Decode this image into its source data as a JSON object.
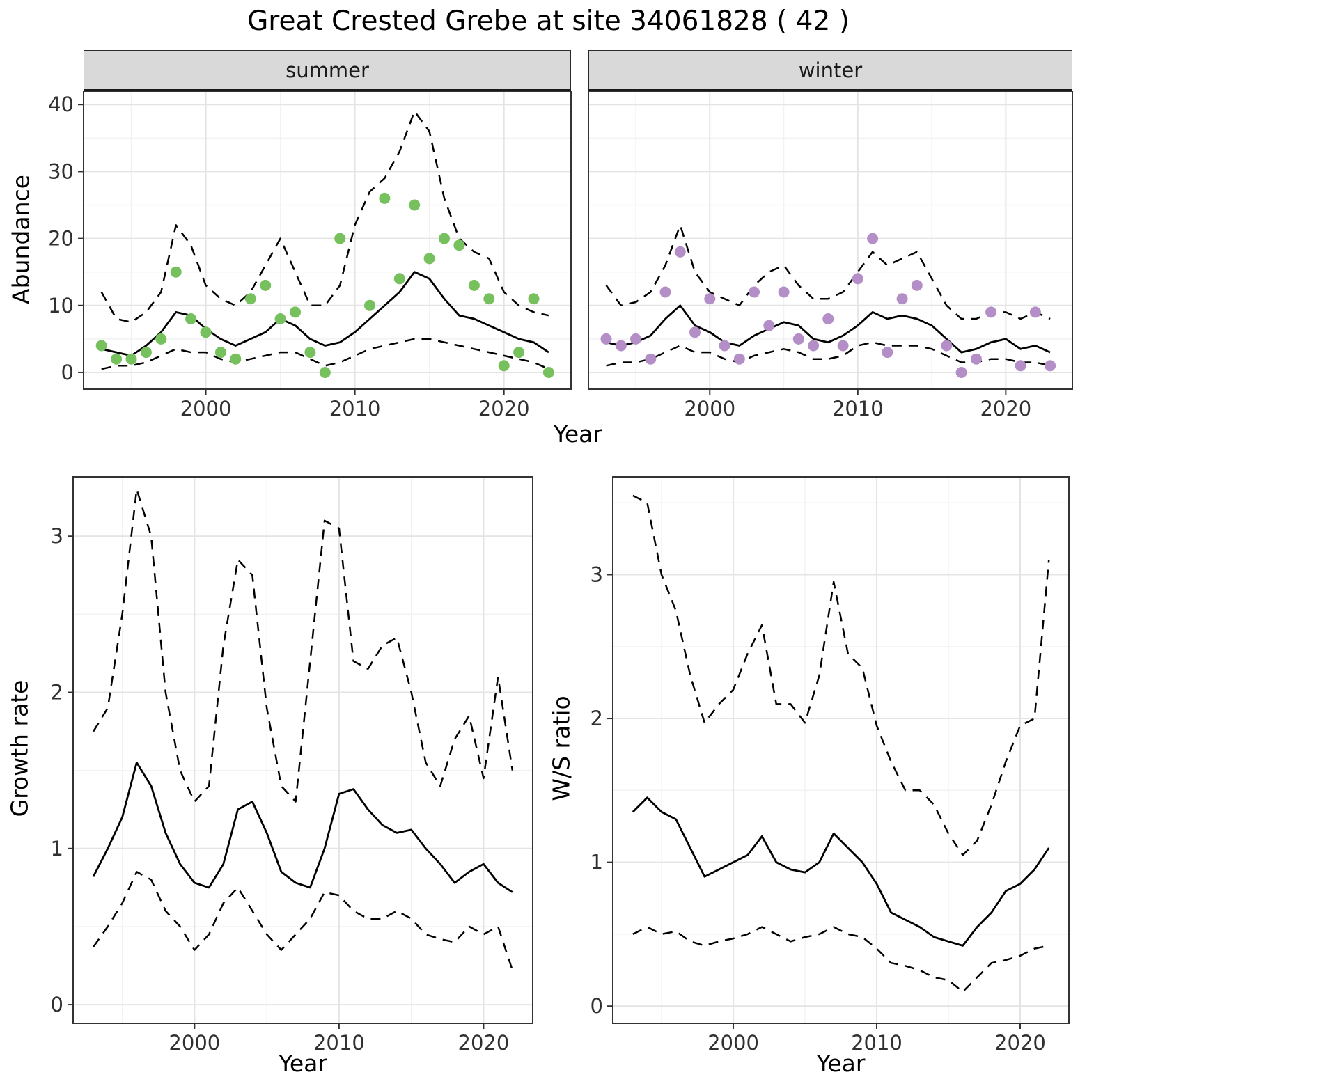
{
  "title": "Great Crested Grebe at site 34061828 ( 42 )",
  "colors": {
    "summer_point": "#76C05D",
    "winter_point": "#B48EC7",
    "fit_line": "#000000",
    "ci_line": "#000000",
    "strip_bg": "#d9d9d9",
    "grid_major": "#e4e4e4",
    "grid_minor": "#f2f2f2",
    "panel_border": "#333333",
    "tick_text": "#303030"
  },
  "chart_data": [
    {
      "type": "line",
      "facet_label": "summer",
      "xlabel": "Year",
      "ylabel": "Abundance",
      "xlim": [
        1991.8,
        2024.5
      ],
      "ylim": [
        -2.5,
        42
      ],
      "xticks": [
        2000,
        2010,
        2020
      ],
      "yticks": [
        0,
        10,
        20,
        30,
        40
      ],
      "xminor": [
        1995,
        2005,
        2015
      ],
      "yminor": [
        5,
        15,
        25,
        35
      ],
      "x": [
        1993,
        1994,
        1995,
        1996,
        1997,
        1998,
        1999,
        2000,
        2001,
        2002,
        2003,
        2004,
        2005,
        2006,
        2007,
        2008,
        2009,
        2010,
        2011,
        2012,
        2013,
        2014,
        2015,
        2016,
        2017,
        2018,
        2019,
        2020,
        2021,
        2022,
        2023
      ],
      "series": [
        {
          "name": "ci-upper",
          "type": "line",
          "dashed": true,
          "color": "#000000",
          "values": [
            12,
            8,
            7.5,
            9,
            12,
            22,
            19,
            13,
            11,
            10,
            12,
            16,
            20,
            15,
            10,
            10,
            13,
            22,
            27,
            29,
            33,
            39,
            36,
            26,
            20,
            18,
            17,
            12,
            10,
            9,
            8.5
          ]
        },
        {
          "name": "ci-lower",
          "type": "line",
          "dashed": true,
          "color": "#000000",
          "values": [
            0.5,
            1,
            1,
            1.5,
            2.5,
            3.5,
            3,
            3,
            2,
            1.5,
            2,
            2.5,
            3,
            3,
            2,
            1,
            1.5,
            2.5,
            3.5,
            4,
            4.5,
            5,
            5,
            4.5,
            4,
            3.5,
            3,
            2.5,
            2,
            1.5,
            0.5
          ]
        },
        {
          "name": "fitted",
          "type": "line",
          "dashed": false,
          "color": "#000000",
          "values": [
            3.5,
            3,
            2.5,
            4,
            6,
            9,
            8.5,
            6.5,
            5,
            4,
            5,
            6,
            8,
            7,
            5,
            4,
            4.5,
            6,
            8,
            10,
            12,
            15,
            14,
            11,
            8.5,
            8,
            7,
            6,
            5,
            4.5,
            3
          ]
        },
        {
          "name": "observed",
          "type": "points",
          "color": "#76C05D",
          "values": [
            4,
            2,
            2,
            3,
            5,
            15,
            8,
            6,
            3,
            2,
            11,
            13,
            8,
            9,
            3,
            0,
            20,
            null,
            10,
            26,
            14,
            25,
            17,
            20,
            19,
            13,
            11,
            1,
            3,
            11,
            0
          ]
        }
      ]
    },
    {
      "type": "line",
      "facet_label": "winter",
      "xlabel": "Year",
      "ylabel": "Abundance",
      "xlim": [
        1991.8,
        2024.5
      ],
      "ylim": [
        -2.5,
        42
      ],
      "xticks": [
        2000,
        2010,
        2020
      ],
      "yticks": [
        0,
        10,
        20,
        30,
        40
      ],
      "xminor": [
        1995,
        2005,
        2015
      ],
      "yminor": [
        5,
        15,
        25,
        35
      ],
      "x": [
        1993,
        1994,
        1995,
        1996,
        1997,
        1998,
        1999,
        2000,
        2001,
        2002,
        2003,
        2004,
        2005,
        2006,
        2007,
        2008,
        2009,
        2010,
        2011,
        2012,
        2013,
        2014,
        2015,
        2016,
        2017,
        2018,
        2019,
        2020,
        2021,
        2022,
        2023
      ],
      "series": [
        {
          "name": "ci-upper",
          "type": "line",
          "dashed": true,
          "color": "#000000",
          "values": [
            13,
            10,
            10.5,
            12,
            16,
            22,
            15,
            12,
            11,
            10,
            13,
            15,
            16,
            13,
            11,
            11,
            12,
            15,
            18,
            16,
            17,
            18,
            14,
            10,
            8,
            8,
            9,
            9,
            8,
            9,
            8
          ]
        },
        {
          "name": "ci-lower",
          "type": "line",
          "dashed": true,
          "color": "#000000",
          "values": [
            1,
            1.5,
            1.5,
            2,
            3,
            4,
            3,
            3,
            2,
            1.5,
            2.5,
            3,
            3.5,
            3,
            2,
            2,
            2.5,
            4,
            4.5,
            4,
            4,
            4,
            3.5,
            2.5,
            1.5,
            1.5,
            2,
            2,
            1.5,
            1.5,
            1
          ]
        },
        {
          "name": "fitted",
          "type": "line",
          "dashed": false,
          "color": "#000000",
          "values": [
            4.5,
            4,
            4.5,
            5.5,
            8,
            10,
            7,
            6,
            4.5,
            4,
            5.5,
            6.5,
            7.5,
            7,
            5,
            4.5,
            5.5,
            7,
            9,
            8,
            8.5,
            8,
            7,
            5,
            3,
            3.5,
            4.5,
            5,
            3.5,
            4,
            3
          ]
        },
        {
          "name": "observed",
          "type": "points",
          "color": "#B48EC7",
          "values": [
            5,
            4,
            5,
            2,
            12,
            18,
            6,
            11,
            4,
            2,
            12,
            7,
            12,
            5,
            4,
            8,
            4,
            14,
            20,
            3,
            11,
            13,
            null,
            4,
            0,
            2,
            9,
            null,
            1,
            9,
            1
          ]
        }
      ]
    },
    {
      "type": "line",
      "xlabel": "Year",
      "ylabel": "Growth rate",
      "xlim": [
        1991.6,
        2023.4
      ],
      "ylim": [
        -0.12,
        3.38
      ],
      "xticks": [
        2000,
        2010,
        2020
      ],
      "yticks": [
        0,
        1,
        2,
        3
      ],
      "xminor": [
        1995,
        2005,
        2015
      ],
      "yminor": [
        0.5,
        1.5,
        2.5
      ],
      "x": [
        1993,
        1994,
        1995,
        1996,
        1997,
        1998,
        1999,
        2000,
        2001,
        2002,
        2003,
        2004,
        2005,
        2006,
        2007,
        2008,
        2009,
        2010,
        2011,
        2012,
        2013,
        2014,
        2015,
        2016,
        2017,
        2018,
        2019,
        2020,
        2021,
        2022
      ],
      "series": [
        {
          "name": "ci-upper",
          "type": "line",
          "dashed": true,
          "color": "#000000",
          "values": [
            1.75,
            1.9,
            2.5,
            3.3,
            3.0,
            2.0,
            1.5,
            1.3,
            1.4,
            2.3,
            2.85,
            2.75,
            1.9,
            1.4,
            1.3,
            2.2,
            3.1,
            3.05,
            2.2,
            2.15,
            2.3,
            2.35,
            2.0,
            1.55,
            1.4,
            1.7,
            1.85,
            1.45,
            2.1,
            1.5
          ]
        },
        {
          "name": "ci-lower",
          "type": "line",
          "dashed": true,
          "color": "#000000",
          "values": [
            0.37,
            0.5,
            0.65,
            0.85,
            0.8,
            0.6,
            0.5,
            0.35,
            0.45,
            0.65,
            0.75,
            0.6,
            0.45,
            0.35,
            0.45,
            0.55,
            0.72,
            0.7,
            0.6,
            0.55,
            0.55,
            0.6,
            0.55,
            0.45,
            0.42,
            0.4,
            0.5,
            0.45,
            0.5,
            0.22
          ]
        },
        {
          "name": "fitted",
          "type": "line",
          "dashed": false,
          "color": "#000000",
          "values": [
            0.82,
            1.0,
            1.2,
            1.55,
            1.4,
            1.1,
            0.9,
            0.78,
            0.75,
            0.9,
            1.25,
            1.3,
            1.1,
            0.85,
            0.78,
            0.75,
            1.0,
            1.35,
            1.38,
            1.25,
            1.15,
            1.1,
            1.12,
            1.0,
            0.9,
            0.78,
            0.85,
            0.9,
            0.78,
            0.72
          ]
        }
      ]
    },
    {
      "type": "line",
      "xlabel": "Year",
      "ylabel": "W/S ratio",
      "xlim": [
        1991.6,
        2023.4
      ],
      "ylim": [
        -0.12,
        3.68
      ],
      "xticks": [
        2000,
        2010,
        2020
      ],
      "yticks": [
        0,
        1,
        2,
        3
      ],
      "xminor": [
        1995,
        2005,
        2015
      ],
      "yminor": [
        0.5,
        1.5,
        2.5,
        3.5
      ],
      "x": [
        1993,
        1994,
        1995,
        1996,
        1997,
        1998,
        1999,
        2000,
        2001,
        2002,
        2003,
        2004,
        2005,
        2006,
        2007,
        2008,
        2009,
        2010,
        2011,
        2012,
        2013,
        2014,
        2015,
        2016,
        2017,
        2018,
        2019,
        2020,
        2021,
        2022
      ],
      "series": [
        {
          "name": "ci-upper",
          "type": "line",
          "dashed": true,
          "color": "#000000",
          "values": [
            3.55,
            3.5,
            3.0,
            2.75,
            2.3,
            1.97,
            2.1,
            2.2,
            2.45,
            2.65,
            2.1,
            2.1,
            1.97,
            2.3,
            2.95,
            2.45,
            2.35,
            1.95,
            1.7,
            1.5,
            1.5,
            1.4,
            1.2,
            1.05,
            1.15,
            1.4,
            1.7,
            1.95,
            2.0,
            3.1
          ]
        },
        {
          "name": "ci-lower",
          "type": "line",
          "dashed": true,
          "color": "#000000",
          "values": [
            0.5,
            0.55,
            0.5,
            0.52,
            0.45,
            0.42,
            0.45,
            0.47,
            0.5,
            0.55,
            0.5,
            0.45,
            0.48,
            0.5,
            0.55,
            0.5,
            0.48,
            0.4,
            0.3,
            0.28,
            0.25,
            0.2,
            0.18,
            0.1,
            0.2,
            0.3,
            0.32,
            0.35,
            0.4,
            0.42
          ]
        },
        {
          "name": "fitted",
          "type": "line",
          "dashed": false,
          "color": "#000000",
          "values": [
            1.35,
            1.45,
            1.35,
            1.3,
            1.1,
            0.9,
            0.95,
            1.0,
            1.05,
            1.18,
            1.0,
            0.95,
            0.93,
            1.0,
            1.2,
            1.1,
            1.0,
            0.85,
            0.65,
            0.6,
            0.55,
            0.48,
            0.45,
            0.42,
            0.55,
            0.65,
            0.8,
            0.85,
            0.95,
            1.1
          ]
        }
      ]
    }
  ]
}
